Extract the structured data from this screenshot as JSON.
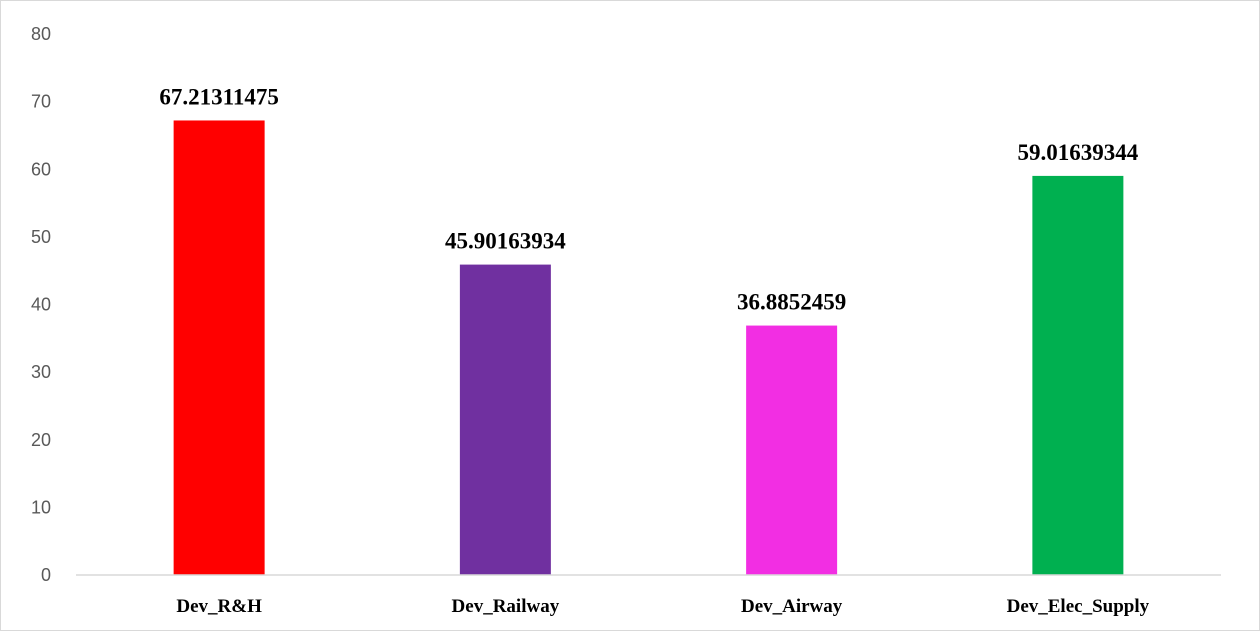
{
  "chart_data": {
    "type": "bar",
    "categories": [
      "Dev_R&H",
      "Dev_Railway",
      "Dev_Airway",
      "Dev_Elec_Supply"
    ],
    "values": [
      67.21311475,
      45.90163934,
      36.8852459,
      59.01639344
    ],
    "data_labels": [
      "67.21311475",
      "45.90163934",
      "36.8852459",
      "59.01639344"
    ],
    "colors": [
      "#ff0000",
      "#7030a0",
      "#f22ee3",
      "#00b050"
    ],
    "title": "",
    "xlabel": "",
    "ylabel": "",
    "ylim": [
      0,
      80
    ],
    "yticks": [
      0,
      10,
      20,
      30,
      40,
      50,
      60,
      70,
      80
    ],
    "grid": false,
    "legend": "none"
  }
}
